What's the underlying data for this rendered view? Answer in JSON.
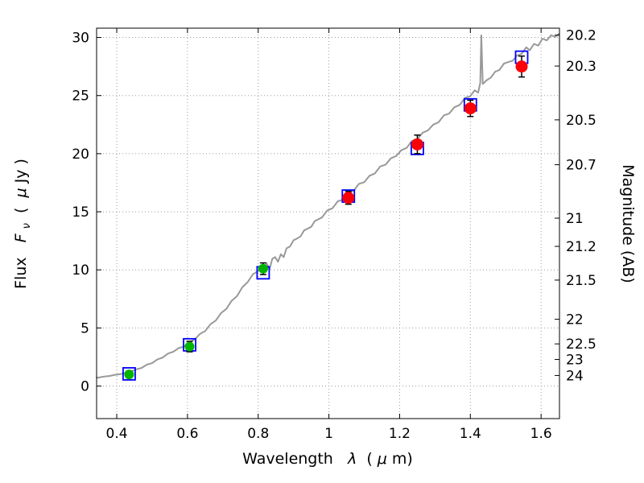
{
  "chart_data": {
    "type": "line",
    "title": "",
    "xlabel_parts": {
      "prefix": "Wavelength  ",
      "lambda": "λ",
      "mid": " (",
      "mu": "μ",
      "end": "m)"
    },
    "ylabel_left_parts": {
      "prefix": "Flux  ",
      "F": "F",
      "nu": "ν",
      "mid": " ( ",
      "mu": "μ",
      "unit": "Jy )"
    },
    "ylabel_right": "Magnitude (AB)",
    "xlim": [
      0.343,
      1.652
    ],
    "ylim": [
      -2.8,
      30.8
    ],
    "grid": true,
    "x_ticks": [
      {
        "value": 0.4,
        "label": "0.4"
      },
      {
        "value": 0.6,
        "label": "0.6"
      },
      {
        "value": 0.8,
        "label": "0.8"
      },
      {
        "value": 1.0,
        "label": "1"
      },
      {
        "value": 1.2,
        "label": "1.2"
      },
      {
        "value": 1.4,
        "label": "1.4"
      },
      {
        "value": 1.6,
        "label": "1.6"
      }
    ],
    "y_ticks_left": [
      {
        "value": 0,
        "label": "0"
      },
      {
        "value": 5,
        "label": "5"
      },
      {
        "value": 10,
        "label": "10"
      },
      {
        "value": 15,
        "label": "15"
      },
      {
        "value": 20,
        "label": "20"
      },
      {
        "value": 25,
        "label": "25"
      },
      {
        "value": 30,
        "label": "30"
      }
    ],
    "y_ticks_right": [
      {
        "flux": 30.2,
        "label": "20.2"
      },
      {
        "flux": 27.54,
        "label": "20.3"
      },
      {
        "flux": 22.91,
        "label": "20.5"
      },
      {
        "flux": 19.05,
        "label": "20.7"
      },
      {
        "flux": 14.45,
        "label": "21"
      },
      {
        "flux": 12.02,
        "label": "21.2"
      },
      {
        "flux": 9.12,
        "label": "21.5"
      },
      {
        "flux": 5.75,
        "label": "22"
      },
      {
        "flux": 3.63,
        "label": "22.5"
      },
      {
        "flux": 2.29,
        "label": "23"
      },
      {
        "flux": 0.91,
        "label": "24"
      }
    ],
    "colors": {
      "spectrum": "#999999",
      "model": "#0000ff",
      "observed_optical": "#00b400",
      "observed_ir": "#fb0006",
      "errorbar": "#000000",
      "axis": "#000000"
    },
    "series": [
      {
        "name": "model-spectrum",
        "kind": "line",
        "color_key": "spectrum",
        "points": [
          [
            0.343,
            0.72
          ],
          [
            0.35,
            0.74
          ],
          [
            0.365,
            0.82
          ],
          [
            0.38,
            0.87
          ],
          [
            0.395,
            0.97
          ],
          [
            0.41,
            1.03
          ],
          [
            0.425,
            1.12
          ],
          [
            0.44,
            1.24
          ],
          [
            0.455,
            1.44
          ],
          [
            0.47,
            1.56
          ],
          [
            0.485,
            1.84
          ],
          [
            0.5,
            1.97
          ],
          [
            0.515,
            2.3
          ],
          [
            0.53,
            2.45
          ],
          [
            0.545,
            2.8
          ],
          [
            0.56,
            2.96
          ],
          [
            0.575,
            3.27
          ],
          [
            0.59,
            3.4
          ],
          [
            0.605,
            3.76
          ],
          [
            0.62,
            4.0
          ],
          [
            0.635,
            4.48
          ],
          [
            0.65,
            4.74
          ],
          [
            0.665,
            5.32
          ],
          [
            0.68,
            5.64
          ],
          [
            0.695,
            6.28
          ],
          [
            0.71,
            6.64
          ],
          [
            0.725,
            7.34
          ],
          [
            0.74,
            7.74
          ],
          [
            0.755,
            8.5
          ],
          [
            0.77,
            8.94
          ],
          [
            0.785,
            9.62
          ],
          [
            0.8,
            9.9
          ],
          [
            0.808,
            10.35
          ],
          [
            0.816,
            9.85
          ],
          [
            0.824,
            10.55
          ],
          [
            0.832,
            10.05
          ],
          [
            0.84,
            10.95
          ],
          [
            0.848,
            11.1
          ],
          [
            0.856,
            10.7
          ],
          [
            0.864,
            11.35
          ],
          [
            0.872,
            11.1
          ],
          [
            0.88,
            11.85
          ],
          [
            0.89,
            12.02
          ],
          [
            0.9,
            12.55
          ],
          [
            0.91,
            12.7
          ],
          [
            0.92,
            12.9
          ],
          [
            0.93,
            13.4
          ],
          [
            0.94,
            13.55
          ],
          [
            0.95,
            13.7
          ],
          [
            0.96,
            14.2
          ],
          [
            0.97,
            14.35
          ],
          [
            0.98,
            14.5
          ],
          [
            0.995,
            15.1
          ],
          [
            1.01,
            15.3
          ],
          [
            1.025,
            15.9
          ],
          [
            1.04,
            16.05
          ],
          [
            1.055,
            16.6
          ],
          [
            1.07,
            16.8
          ],
          [
            1.085,
            17.4
          ],
          [
            1.1,
            17.55
          ],
          [
            1.115,
            18.1
          ],
          [
            1.13,
            18.3
          ],
          [
            1.145,
            18.9
          ],
          [
            1.16,
            19.05
          ],
          [
            1.175,
            19.6
          ],
          [
            1.19,
            19.8
          ],
          [
            1.205,
            20.3
          ],
          [
            1.22,
            20.5
          ],
          [
            1.235,
            21.1
          ],
          [
            1.25,
            21.25
          ],
          [
            1.265,
            21.8
          ],
          [
            1.28,
            22.0
          ],
          [
            1.295,
            22.5
          ],
          [
            1.31,
            22.7
          ],
          [
            1.325,
            23.3
          ],
          [
            1.34,
            23.45
          ],
          [
            1.355,
            24.0
          ],
          [
            1.37,
            24.2
          ],
          [
            1.385,
            24.8
          ],
          [
            1.4,
            24.95
          ],
          [
            1.412,
            25.45
          ],
          [
            1.422,
            25.25
          ],
          [
            1.428,
            26.1
          ],
          [
            1.431,
            30.2
          ],
          [
            1.435,
            26.0
          ],
          [
            1.445,
            26.3
          ],
          [
            1.458,
            26.55
          ],
          [
            1.47,
            27.05
          ],
          [
            1.482,
            27.2
          ],
          [
            1.495,
            27.75
          ],
          [
            1.508,
            27.9
          ],
          [
            1.52,
            28.0
          ],
          [
            1.532,
            28.45
          ],
          [
            1.545,
            28.6
          ],
          [
            1.558,
            29.15
          ],
          [
            1.568,
            28.9
          ],
          [
            1.58,
            29.45
          ],
          [
            1.592,
            29.3
          ],
          [
            1.604,
            29.9
          ],
          [
            1.616,
            29.75
          ],
          [
            1.628,
            30.2
          ],
          [
            1.64,
            30.05
          ],
          [
            1.65,
            30.3
          ]
        ]
      },
      {
        "name": "model-photometry",
        "kind": "open-square",
        "color_key": "model",
        "points": [
          [
            0.435,
            1.05
          ],
          [
            0.606,
            3.55
          ],
          [
            0.814,
            9.75
          ],
          [
            1.055,
            16.35
          ],
          [
            1.25,
            20.45
          ],
          [
            1.4,
            24.2
          ],
          [
            1.545,
            28.3
          ]
        ]
      },
      {
        "name": "observed-photometry-optical",
        "kind": "circle",
        "color_key": "observed_optical",
        "radius": 6,
        "points": [
          [
            0.435,
            1.0,
            0.3
          ],
          [
            0.606,
            3.4,
            0.45
          ],
          [
            0.814,
            10.1,
            0.5
          ]
        ]
      },
      {
        "name": "observed-photometry-ir",
        "kind": "circle",
        "color_key": "observed_ir",
        "radius": 7.5,
        "points": [
          [
            1.055,
            16.2,
            0.55
          ],
          [
            1.25,
            20.8,
            0.8
          ],
          [
            1.4,
            23.9,
            0.7
          ],
          [
            1.545,
            27.5,
            0.9
          ]
        ]
      }
    ]
  }
}
